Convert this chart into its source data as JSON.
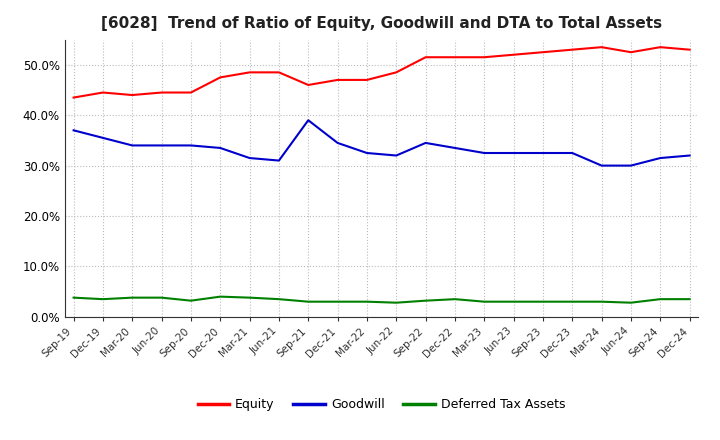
{
  "title": "[6028]  Trend of Ratio of Equity, Goodwill and DTA to Total Assets",
  "x_labels": [
    "Sep-19",
    "Dec-19",
    "Mar-20",
    "Jun-20",
    "Sep-20",
    "Dec-20",
    "Mar-21",
    "Jun-21",
    "Sep-21",
    "Dec-21",
    "Mar-22",
    "Jun-22",
    "Sep-22",
    "Dec-22",
    "Mar-23",
    "Jun-23",
    "Sep-23",
    "Dec-23",
    "Mar-24",
    "Jun-24",
    "Sep-24",
    "Dec-24"
  ],
  "equity": [
    43.5,
    44.5,
    44.0,
    44.5,
    44.5,
    47.5,
    48.5,
    48.5,
    46.0,
    47.0,
    47.0,
    48.5,
    51.5,
    51.5,
    51.5,
    52.0,
    52.5,
    53.0,
    53.5,
    52.5,
    53.5,
    53.0
  ],
  "goodwill": [
    37.0,
    35.5,
    34.0,
    34.0,
    34.0,
    33.5,
    31.5,
    31.0,
    39.0,
    34.5,
    32.5,
    32.0,
    34.5,
    33.5,
    32.5,
    32.5,
    32.5,
    32.5,
    30.0,
    30.0,
    31.5,
    32.0
  ],
  "dta": [
    3.8,
    3.5,
    3.8,
    3.8,
    3.2,
    4.0,
    3.8,
    3.5,
    3.0,
    3.0,
    3.0,
    2.8,
    3.2,
    3.5,
    3.0,
    3.0,
    3.0,
    3.0,
    3.0,
    2.8,
    3.5,
    3.5
  ],
  "equity_color": "#ff0000",
  "goodwill_color": "#0000cc",
  "dta_color": "#008000",
  "ylim": [
    0,
    55
  ],
  "yticks": [
    0.0,
    10.0,
    20.0,
    30.0,
    40.0,
    50.0
  ],
  "background_color": "#ffffff",
  "plot_bg_color": "#ffffff",
  "grid_color": "#bbbbbb",
  "title_fontsize": 11,
  "legend_labels": [
    "Equity",
    "Goodwill",
    "Deferred Tax Assets"
  ]
}
